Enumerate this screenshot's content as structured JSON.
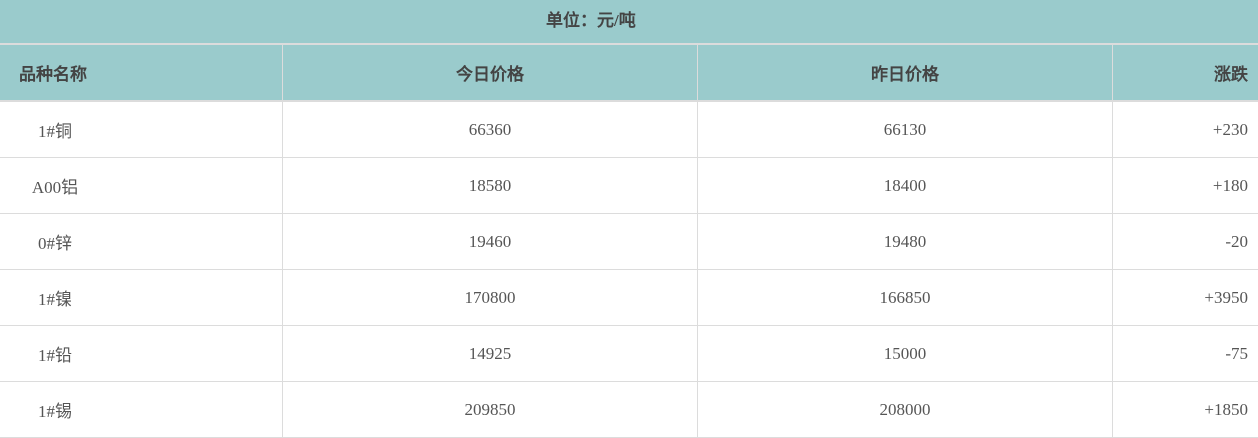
{
  "unit_label": "单位：元/吨",
  "headers": [
    "品种名称",
    "今日价格",
    "昨日价格",
    "涨跌"
  ],
  "rows": [
    [
      "1#铜",
      "66360",
      "66130",
      "+230"
    ],
    [
      "A00铝",
      "18580",
      "18400",
      "+180"
    ],
    [
      "0#锌",
      "19460",
      "19480",
      "-20"
    ],
    [
      "1#镍",
      "170800",
      "166850",
      "+3950"
    ],
    [
      "1#铅",
      "14925",
      "15000",
      "-75"
    ],
    [
      "1#锡",
      "209850",
      "208000",
      "+1850"
    ]
  ],
  "colors": {
    "header_bg": "#9acbcc",
    "border": "#dcdcdc"
  }
}
